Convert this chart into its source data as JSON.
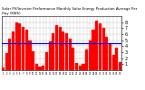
{
  "title": "Solar PV/Inverter Performance Monthly Solar Energy Production Average Per Day (KWh)",
  "bar_color": "#ff0000",
  "avg_line_color": "#0000ff",
  "background_color": "#ffffff",
  "grid_color": "#aaaaaa",
  "values": [
    0.4,
    2.8,
    5.2,
    6.5,
    8.0,
    7.8,
    7.2,
    6.8,
    5.0,
    3.2,
    1.0,
    0.6,
    0.8,
    3.0,
    4.8,
    6.2,
    7.5,
    7.2,
    6.5,
    6.2,
    5.2,
    3.8,
    1.2,
    0.8,
    1.0,
    3.5,
    5.0,
    6.8,
    8.2,
    7.8,
    7.0,
    5.5,
    4.5,
    2.5,
    3.8,
    1.3
  ],
  "ylim": [
    0,
    9
  ],
  "ytick_vals": [
    1,
    2,
    3,
    4,
    5,
    6,
    7,
    8
  ],
  "avg_value": 4.5,
  "num_bars": 36
}
